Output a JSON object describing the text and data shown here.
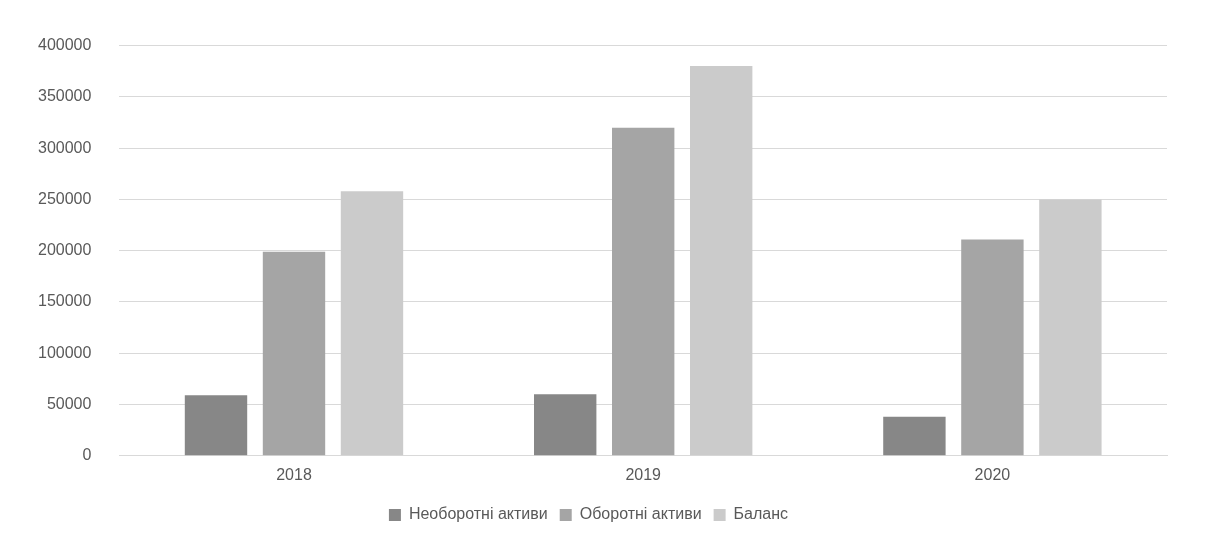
{
  "chart_data": {
    "type": "bar",
    "categories": [
      "2018",
      "2019",
      "2020"
    ],
    "series": [
      {
        "name": "Необоротні активи",
        "color": "#878787",
        "values": [
          59000,
          60000,
          38000
        ]
      },
      {
        "name": "Оборотні активи",
        "color": "#a5a5a5",
        "values": [
          199000,
          320000,
          211000
        ]
      },
      {
        "name": "Баланс",
        "color": "#cbcbcb",
        "values": [
          258000,
          380000,
          250000
        ]
      }
    ],
    "ylim": [
      0,
      400000
    ],
    "yticks": [
      0,
      50000,
      100000,
      150000,
      200000,
      250000,
      300000,
      350000,
      400000
    ],
    "grid": "y",
    "legend": "bottom"
  }
}
